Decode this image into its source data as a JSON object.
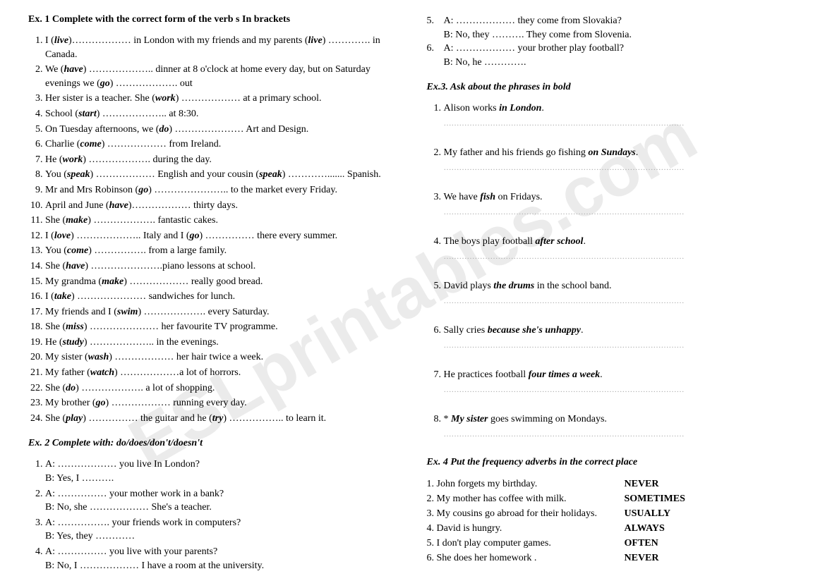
{
  "watermark": "ESLprintables.com",
  "left": {
    "ex1": {
      "heading": "Ex. 1 Complete with the correct form of the verb s In brackets",
      "items": [
        "I (<b><i>live</i></b>)……………… in London with my friends and my parents (<b><i>live</i></b>) …………. in Canada.",
        "We (<b><i>have</i></b>) ……………….. dinner at 8 o'clock at home every day, but on Saturday evenings we (<b><i>go</i></b>)  ………………. out",
        "Her sister is a teacher. She (<b><i>work</i></b>) ……………… at a primary school.",
        "School (<b><i>start</i></b>) ……………….. at 8:30.",
        "On Tuesday afternoons, we (<b><i>do</i></b>) ………………… Art and Design.",
        "Charlie (<b><i>come</i></b>) ……………… from Ireland.",
        "He (<b><i>work</i></b>) ………………. during the day.",
        "You  (<b><i>speak</i></b>) ……………… English and your cousin (<b><i>speak</i></b>) …………....... Spanish.",
        "Mr and Mrs Robinson (<b><i>go</i></b>) ………………….. to the market every Friday.",
        "April and June (<b><i>have</i></b>)……………… thirty days.",
        "She (<b><i>make</i></b>) ………………. fantastic cakes.",
        "I (<b><i>love</i></b>) ……………….. Italy and I (<b><i>go</i></b>) …………… there every summer.",
        "You (<b><i>come</i></b>) ……………. from a large family.",
        "She (<b><i>have</i></b>) ………………….piano lessons at school.",
        "My grandma (<b><i>make</i></b>) ……………… really good bread.",
        "I (<b><i>take</i></b>) ………………… sandwiches for lunch.",
        "My friends and I (<b><i>swim</i></b>) ………………. every Saturday.",
        "She (<b><i>miss</i></b>) ………………… her favourite TV programme.",
        "He (<b><i>study</i></b>) ……………….. in the evenings.",
        "My sister (<b><i>wash</i></b>) ……………… her hair twice a week.",
        "My father (<b><i>watch</i></b>) ………………a lot of horrors.",
        "She (<b><i>do</i></b>) ………………. a lot of shopping.",
        "My brother (<b><i>go</i></b>) ……………… running every day.",
        "She (<b><i>play</i></b>) …………… the guitar and he (<b><i>try</i></b>) …………….. to learn it."
      ]
    },
    "ex2": {
      "heading": "Ex. 2 Complete with: do/does/don't/doesn't",
      "items": [
        {
          "a": "A:  ……………… you live In London?",
          "b": "B: Yes, I ………."
        },
        {
          "a": "A:  …………… your mother work in a bank?",
          "b": "B: No, she ………………  She's a teacher."
        },
        {
          "a": "A:  ……………. your friends work in computers?",
          "b": "B: Yes, they …………"
        },
        {
          "a": "A:  …………… you live with your parents?",
          "b": "B: No, I ……………… I have a room at the university."
        }
      ]
    }
  },
  "right": {
    "ex2_cont": [
      {
        "n": "5.",
        "a": "A:  ……………… they come from Slovakia?",
        "b": "B: No, they ……….  They come from Slovenia."
      },
      {
        "n": "6.",
        "a": "A:  ……………… your brother play football?",
        "b": "B: No, he …………."
      }
    ],
    "ex3": {
      "heading": "Ex.3. Ask about the phrases in bold",
      "items": [
        "Alison works <b><i>in London</i></b>.",
        "My father and his friends go fishing <b><i>on Sundays</i></b>.",
        "We have <b><i>fish</i></b> on Fridays.",
        "The boys play football <b><i>after school</i></b>.",
        "David plays <b><i>the drums</i></b> in the school band.",
        "Sally cries <b><i>because she's unhappy</i></b>.",
        "He practices football  <b><i>four times a week</i></b>.",
        "* <b><i>My sister</i></b> goes swimming on Mondays."
      ]
    },
    "ex4": {
      "heading": "Ex. 4  Put the frequency adverbs in the correct place",
      "items": [
        {
          "s": "1. John forgets my birthday.",
          "a": "NEVER"
        },
        {
          "s": "2. My mother has coffee with milk.",
          "a": "SOMETIMES"
        },
        {
          "s": "3. My cousins go abroad for their holidays.",
          "a": "USUALLY"
        },
        {
          "s": "4. David is hungry.",
          "a": "ALWAYS"
        },
        {
          "s": "5. I don't play computer games.",
          "a": "OFTEN"
        },
        {
          "s": "6. She does her homework .",
          "a": "NEVER"
        }
      ]
    }
  }
}
